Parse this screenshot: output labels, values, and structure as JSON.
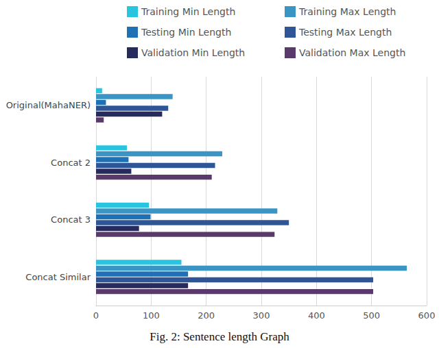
{
  "chart_data": {
    "type": "bar",
    "orientation": "horizontal",
    "title": "Fig. 2: Sentence length Graph",
    "categories": [
      "Original(MahaNER)",
      "Concat 2",
      "Concat 3",
      "Concat Similar"
    ],
    "series": [
      {
        "name": "Training Min Length",
        "color": "#29c4e0",
        "values": [
          11,
          56,
          96,
          155
        ]
      },
      {
        "name": "Training Max Length",
        "color": "#3a94c4",
        "values": [
          139,
          229,
          329,
          564
        ]
      },
      {
        "name": "Testing Min Length",
        "color": "#1f70b5",
        "values": [
          18,
          59,
          99,
          167
        ]
      },
      {
        "name": "Testing Max Length",
        "color": "#2e5696",
        "values": [
          131,
          216,
          350,
          503
        ]
      },
      {
        "name": "Validation Min Length",
        "color": "#262a5c",
        "values": [
          120,
          64,
          78,
          167
        ]
      },
      {
        "name": "Validation Max Length",
        "color": "#5a3a6a",
        "values": [
          14,
          210,
          324,
          503
        ]
      }
    ],
    "xlim": [
      0,
      600
    ],
    "xticks": [
      0,
      100,
      200,
      300,
      400,
      500,
      600
    ],
    "grid": true
  }
}
